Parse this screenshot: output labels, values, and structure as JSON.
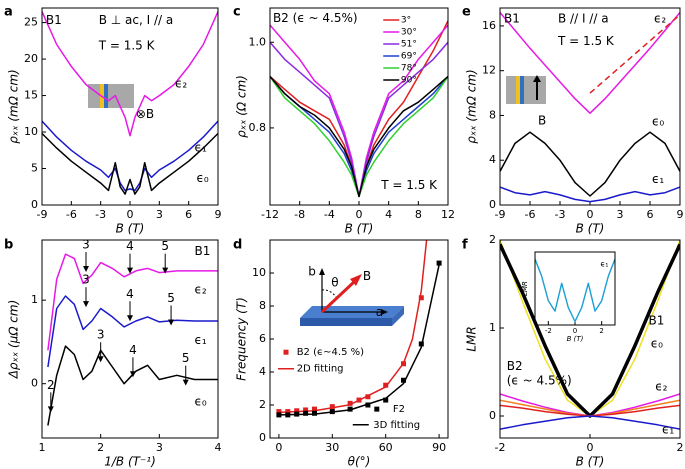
{
  "chart_data": [
    {
      "type": "line",
      "panel": "a",
      "xlabel": "B (T)",
      "ylabel": "ρₓₓ (mΩ cm)",
      "xlim": [
        -9,
        9
      ],
      "xticks": [
        -9,
        -6,
        -3,
        0,
        3,
        6,
        9
      ],
      "ylim": [
        0,
        27
      ],
      "yticks": [
        0,
        5,
        10,
        15,
        20,
        25
      ],
      "annotations": [
        "B1",
        "B ⊥ ac, I // a",
        "T = 1.5 K",
        "⊗B"
      ],
      "x": [
        -9,
        -7.5,
        -6,
        -4.5,
        -3,
        -2.2,
        -1.5,
        -1,
        -0.5,
        0,
        0.5,
        1,
        1.5,
        2.2,
        3,
        4.5,
        6,
        7.5,
        9
      ],
      "series": [
        {
          "name": "ϵ₂",
          "color": "#e619e6",
          "values": [
            26.5,
            22,
            19,
            16.5,
            15,
            14.3,
            15,
            13.5,
            12,
            9.5,
            12,
            13.5,
            15,
            14.3,
            15,
            16.5,
            19,
            22,
            26.5
          ]
        },
        {
          "name": "ϵ₁",
          "color": "#1a1acc",
          "values": [
            11.5,
            9.3,
            7.5,
            6,
            4.8,
            3.8,
            5,
            3,
            2,
            2.2,
            2,
            3,
            5,
            3.8,
            4.8,
            6,
            7.5,
            9.3,
            11.5
          ]
        },
        {
          "name": "ϵ₀",
          "color": "#000000",
          "values": [
            9.8,
            7.8,
            6,
            4.5,
            3,
            2,
            5.8,
            2.5,
            1.5,
            3.5,
            1.5,
            2.5,
            5.8,
            2,
            3,
            4.5,
            6,
            7.8,
            9.8
          ]
        }
      ]
    },
    {
      "type": "line",
      "panel": "c",
      "xlabel": "B (T)",
      "ylabel": "ρₓₓ (Ω cm)",
      "xlim": [
        -12,
        12
      ],
      "xticks": [
        -12,
        -8,
        -4,
        0,
        4,
        8,
        12
      ],
      "ylim": [
        0.62,
        1.08
      ],
      "yticks": [
        0.8,
        {
          "value": 1,
          "label": "1.0"
        }
      ],
      "annotations": [
        "B2 (ϵ ~ 4.5%)",
        "T = 1.5 K"
      ],
      "x": [
        -12,
        -10,
        -8,
        -6,
        -4,
        -2,
        -1,
        0,
        1,
        2,
        4,
        6,
        8,
        10,
        12
      ],
      "series": [
        {
          "name": "3°",
          "color": "#e02020",
          "values": [
            0.92,
            0.89,
            0.86,
            0.84,
            0.82,
            0.76,
            0.71,
            0.64,
            0.71,
            0.76,
            0.82,
            0.86,
            0.92,
            0.98,
            1.05
          ]
        },
        {
          "name": "30°",
          "color": "#e61ae6",
          "values": [
            1.04,
            1.0,
            0.96,
            0.91,
            0.88,
            0.79,
            0.73,
            0.64,
            0.73,
            0.79,
            0.88,
            0.91,
            0.96,
            1.0,
            1.04
          ]
        },
        {
          "name": "51°",
          "color": "#8a2be2",
          "values": [
            1.0,
            0.96,
            0.93,
            0.9,
            0.87,
            0.78,
            0.72,
            0.64,
            0.72,
            0.78,
            0.87,
            0.9,
            0.93,
            0.96,
            1.0
          ]
        },
        {
          "name": "69°",
          "color": "#2040d0",
          "values": [
            0.92,
            0.88,
            0.85,
            0.82,
            0.79,
            0.74,
            0.7,
            0.64,
            0.7,
            0.74,
            0.79,
            0.82,
            0.85,
            0.88,
            0.92
          ]
        },
        {
          "name": "78°",
          "color": "#30d030",
          "values": [
            0.92,
            0.87,
            0.84,
            0.81,
            0.77,
            0.72,
            0.69,
            0.64,
            0.69,
            0.72,
            0.77,
            0.81,
            0.84,
            0.87,
            0.92
          ]
        },
        {
          "name": "90°",
          "color": "#000000",
          "values": [
            0.92,
            0.88,
            0.85,
            0.83,
            0.8,
            0.75,
            0.71,
            0.64,
            0.71,
            0.75,
            0.8,
            0.84,
            0.86,
            0.89,
            0.92
          ]
        }
      ]
    },
    {
      "type": "line",
      "panel": "e",
      "xlabel": "B (T)",
      "ylabel": "ρₓₓ (mΩ cm)",
      "xlim": [
        -9,
        9
      ],
      "xticks": [
        -9,
        -6,
        -3,
        0,
        3,
        6,
        9
      ],
      "ylim": [
        0,
        17.6
      ],
      "yticks": [
        0,
        4,
        8,
        12,
        16
      ],
      "annotations": [
        "B1",
        "B // I // a",
        "T = 1.5 K",
        "B"
      ],
      "x": [
        -9,
        -7.5,
        -6,
        -4.5,
        -3,
        -1.5,
        0,
        1.5,
        3,
        4.5,
        6,
        7.5,
        9
      ],
      "series": [
        {
          "name": "ϵ₂",
          "color": "#e619e6",
          "values": [
            17.2,
            15.6,
            14,
            12.5,
            11,
            9.5,
            8.2,
            9.5,
            11,
            12.5,
            14,
            15.6,
            17.2
          ]
        },
        {
          "name": "ϵ₀",
          "color": "#000000",
          "values": [
            3,
            5.5,
            6.5,
            5.5,
            4,
            2,
            0.8,
            2,
            4,
            5.5,
            6.5,
            5.5,
            3
          ]
        },
        {
          "name": "ϵ₁",
          "color": "#1a1acc",
          "values": [
            1.6,
            1.1,
            0.9,
            1.2,
            0.9,
            0.5,
            0.3,
            0.5,
            0.9,
            1.2,
            0.9,
            1.1,
            1.6
          ]
        },
        {
          "color": "#e02020",
          "dashed": true,
          "x": [
            0,
            9
          ],
          "values": [
            10,
            17
          ]
        }
      ]
    },
    {
      "type": "line",
      "panel": "b",
      "xlabel": "1/B (T⁻¹)",
      "ylabel": "Δρₓₓ (μΩ cm)",
      "xlim": [
        1,
        4
      ],
      "xticks": [
        1,
        2,
        3,
        4
      ],
      "ylim": [
        -0.65,
        1.72
      ],
      "yticks": [
        0,
        1
      ],
      "annotations": [
        "B1",
        "2",
        "3",
        "4",
        "5",
        "3",
        "4",
        "5",
        "3",
        "4",
        "5"
      ],
      "x": [
        1.1,
        1.25,
        1.4,
        1.55,
        1.7,
        1.85,
        2.0,
        2.2,
        2.4,
        2.6,
        2.8,
        3.0,
        3.3,
        3.6,
        4.0
      ],
      "series": [
        {
          "name": "ϵ₂",
          "color": "#e619e6",
          "values": [
            0.4,
            1.25,
            1.55,
            1.5,
            1.2,
            1.3,
            1.45,
            1.38,
            1.28,
            1.35,
            1.38,
            1.33,
            1.35,
            1.35,
            1.35
          ]
        },
        {
          "name": "ϵ₁",
          "color": "#1a1acc",
          "values": [
            0.2,
            0.9,
            1.05,
            0.95,
            0.65,
            0.75,
            0.9,
            0.8,
            0.68,
            0.75,
            0.8,
            0.74,
            0.76,
            0.75,
            0.75
          ]
        },
        {
          "name": "ϵ₀",
          "color": "#000000",
          "values": [
            -0.5,
            0.1,
            0.45,
            0.35,
            0.05,
            0.15,
            0.4,
            0.2,
            0.0,
            0.15,
            0.22,
            0.05,
            0.1,
            0.05,
            0.05
          ]
        }
      ]
    },
    {
      "type": "line",
      "panel": "d",
      "xlabel": "θ(°)",
      "ylabel": "Frequency (T)",
      "xlim": [
        -5,
        95
      ],
      "xticks": [
        0,
        30,
        60,
        90
      ],
      "ylim": [
        0,
        12
      ],
      "yticks": [
        0,
        2,
        4,
        6,
        8,
        10
      ],
      "annotations": [
        "b",
        "θ",
        "B",
        "a"
      ],
      "series": [
        {
          "name": "B2 (ϵ~4.5 %)",
          "color": "#e02020",
          "marker": "square",
          "x": [
            0,
            5,
            10,
            15,
            20,
            30,
            40,
            45,
            50,
            60,
            70,
            80
          ],
          "values": [
            1.6,
            1.6,
            1.65,
            1.7,
            1.75,
            1.9,
            2.1,
            2.3,
            2.5,
            3.2,
            4.5,
            8.5
          ]
        },
        {
          "name": "2D fitting",
          "color": "#e02020",
          "x": [
            0,
            20,
            40,
            60,
            70,
            75,
            80,
            83
          ],
          "values": [
            1.55,
            1.65,
            2.02,
            3.1,
            4.53,
            5.99,
            8.93,
            12
          ]
        },
        {
          "name": "F2",
          "color": "#000000",
          "marker": "square",
          "x": [
            0,
            5,
            10,
            15,
            20,
            30,
            40,
            50,
            60,
            70,
            80,
            90
          ],
          "values": [
            1.4,
            1.4,
            1.45,
            1.5,
            1.5,
            1.6,
            1.75,
            2.0,
            2.3,
            3.5,
            5.7,
            10.6
          ]
        },
        {
          "name": "3D fitting",
          "color": "#000000",
          "x": [
            0,
            20,
            40,
            60,
            70,
            80,
            85,
            90
          ],
          "values": [
            1.4,
            1.45,
            1.7,
            2.4,
            3.3,
            5.5,
            8,
            10.5
          ]
        }
      ]
    },
    {
      "type": "line",
      "panel": "f",
      "xlabel": "B (T)",
      "ylabel": "LMR",
      "xlim": [
        -2,
        2
      ],
      "xticks": [
        -2,
        0,
        2
      ],
      "ylim": [
        -0.25,
        2
      ],
      "yticks": [
        0,
        1,
        2
      ],
      "annotations": [
        "B1",
        "B2",
        "(ϵ ~ 4.5%)"
      ],
      "x": [
        -2,
        -1.5,
        -1,
        -0.5,
        0,
        0.5,
        1,
        1.5,
        2
      ],
      "series": [
        {
          "color": "#f0e020",
          "values": [
            2.0,
            1.3,
            0.65,
            0.18,
            0,
            0.18,
            0.65,
            1.3,
            2.0
          ]
        },
        {
          "name": "ϵ₀",
          "color": "#000000",
          "wide": true,
          "values": [
            1.95,
            1.4,
            0.8,
            0.25,
            0,
            0.25,
            0.8,
            1.4,
            1.95
          ]
        },
        {
          "name": "ϵ₂",
          "color": "#e619e6",
          "values": [
            0.25,
            0.17,
            0.1,
            0.04,
            0,
            0.04,
            0.1,
            0.17,
            0.25
          ]
        },
        {
          "color": "#f08020",
          "values": [
            0.18,
            0.13,
            0.08,
            0.03,
            0,
            0.03,
            0.08,
            0.13,
            0.18
          ]
        },
        {
          "color": "#e02020",
          "values": [
            0.12,
            0.09,
            0.05,
            0.02,
            0,
            0.02,
            0.05,
            0.09,
            0.12
          ]
        },
        {
          "name": "ϵ₁",
          "color": "#1a1acc",
          "values": [
            -0.15,
            -0.1,
            -0.06,
            -0.02,
            0,
            -0.02,
            -0.06,
            -0.1,
            -0.15
          ]
        }
      ]
    },
    {
      "type": "line",
      "xlabel": "B (T)",
      "ylabel": "LMR",
      "xlim": [
        -3,
        3
      ],
      "xticks": [
        -2,
        0,
        2
      ],
      "ylim": [
        0,
        1.05
      ],
      "x": [
        -3,
        -2.5,
        -2,
        -1.5,
        -1,
        -0.5,
        0,
        0.5,
        1,
        1.5,
        2,
        2.5,
        3
      ],
      "series": [
        {
          "name": "ϵ₁",
          "color": "#1a9fd4",
          "values": [
            0.95,
            0.7,
            0.35,
            0.2,
            0.6,
            0.25,
            0.05,
            0.25,
            0.6,
            0.2,
            0.35,
            0.7,
            0.95
          ]
        }
      ]
    }
  ]
}
